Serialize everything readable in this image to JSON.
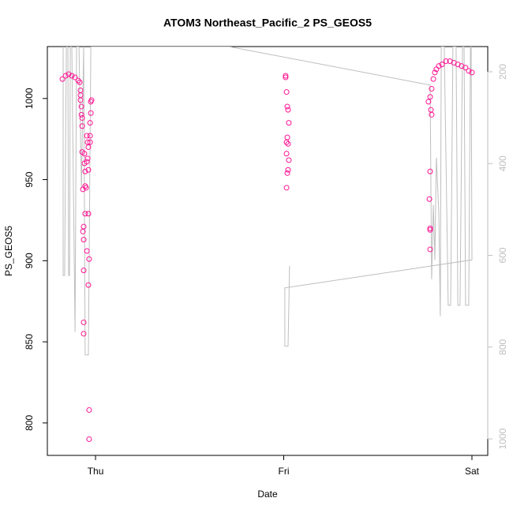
{
  "chart_data": {
    "type": "scatter",
    "title": "ATOM3 Northeast_Pacific_2 PS_GEOS5",
    "x_label": "Date",
    "y_label": "PS_GEOS5",
    "xlim": [
      -0.256,
      2.084
    ],
    "xticks": [
      {
        "value": 0,
        "label": "Thu"
      },
      {
        "value": 1,
        "label": "Fri"
      },
      {
        "value": 2,
        "label": "Sat"
      }
    ],
    "ylim": [
      780,
      1032
    ],
    "yticks": [
      800,
      850,
      900,
      950,
      1000
    ],
    "y2lim": [
      1036,
      145
    ],
    "y2ticks": [
      200,
      400,
      600,
      800,
      1000
    ],
    "series": [
      {
        "type": "scatter",
        "color": "#ff1493",
        "x": [
          -0.176,
          -0.159,
          -0.143,
          -0.126,
          -0.109,
          -0.092,
          -0.084,
          -0.08,
          -0.08,
          -0.08,
          -0.075,
          -0.075,
          -0.071,
          -0.071,
          -0.071,
          -0.067,
          -0.067,
          -0.063,
          -0.063,
          -0.063,
          -0.063,
          -0.063,
          -0.059,
          -0.059,
          -0.055,
          -0.055,
          -0.05,
          -0.055,
          -0.046,
          -0.046,
          -0.042,
          -0.042,
          -0.046,
          -0.038,
          -0.038,
          -0.038,
          -0.034,
          -0.038,
          -0.034,
          -0.034,
          -0.029,
          -0.025,
          -0.025,
          -0.021,
          -0.029,
          -0.029,
          1.01,
          1.01,
          1.015,
          1.019,
          1.023,
          1.027,
          1.019,
          1.015,
          1.023,
          1.015,
          1.027,
          1.023,
          1.019,
          1.015,
          1.769,
          1.778,
          1.782,
          1.786,
          1.778,
          1.774,
          1.778,
          1.778,
          1.778,
          1.786,
          1.795,
          1.803,
          1.811,
          1.824,
          1.841,
          1.862,
          1.883,
          1.904,
          1.925,
          1.945,
          1.966,
          1.983,
          2.0
        ],
        "values": [
          1012,
          1014,
          1015,
          1014,
          1013,
          1011,
          1010,
          1005,
          1002,
          999,
          995,
          990,
          988,
          983,
          967,
          944,
          918,
          921,
          913,
          894,
          862,
          855,
          966,
          960,
          955,
          929,
          945,
          946,
          906,
          977,
          973,
          963,
          961,
          970,
          956,
          929,
          901,
          885,
          808,
          790,
          985,
          991,
          998,
          999,
          977,
          973,
          1014,
          1013,
          1004,
          995,
          993,
          985,
          976,
          973,
          972,
          966,
          962,
          956,
          954,
          945,
          998,
          1001,
          993,
          990,
          955,
          938,
          920,
          919,
          907,
          1006,
          1012,
          1016,
          1018,
          1020,
          1021,
          1023,
          1023,
          1022,
          1021,
          1020,
          1019,
          1017,
          1016
        ]
      },
      {
        "type": "line",
        "axis": "y2",
        "color": "#bebebe",
        "x": [
          -0.172,
          -0.172,
          -0.164,
          -0.155,
          -0.147,
          -0.143,
          -0.138,
          -0.134,
          -0.126,
          -0.109,
          -0.101,
          -0.088,
          -0.075,
          -0.063,
          -0.055,
          -0.038,
          -0.025,
          0.709,
          1.778,
          1.786,
          1.795,
          1.803,
          1.811,
          1.824,
          1.832,
          1.837,
          1.853,
          1.874,
          1.887,
          1.899,
          1.916,
          1.925,
          1.937,
          1.95,
          1.958,
          1.966,
          1.983,
          1.992,
          1.996,
          2.0,
          1.006,
          1.006,
          1.023,
          1.031
        ],
        "values": [
          145,
          644,
          644,
          145,
          145,
          644,
          644,
          145,
          145,
          767,
          145,
          145,
          455,
          145,
          817,
          817,
          145,
          145,
          229,
          652,
          490,
          610,
          387,
          507,
          733,
          145,
          145,
          709,
          709,
          145,
          145,
          709,
          709,
          145,
          145,
          709,
          709,
          145,
          145,
          610,
          671,
          798,
          798,
          623
        ]
      }
    ]
  }
}
